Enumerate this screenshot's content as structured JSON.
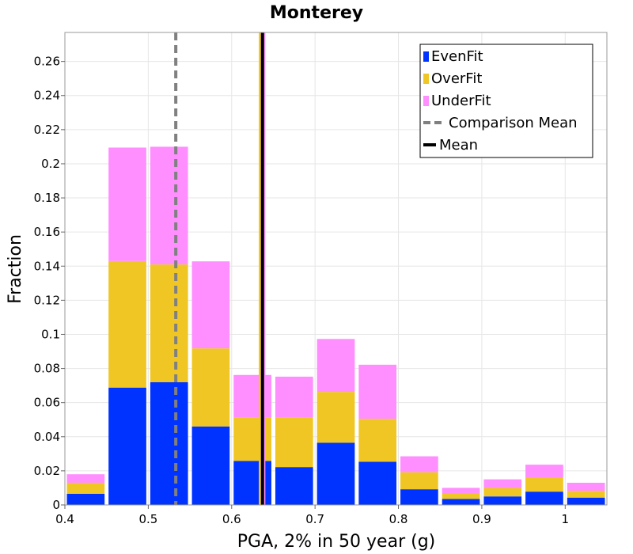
{
  "chart_data": {
    "type": "bar",
    "stacked": true,
    "title": "Monterey",
    "xlabel": "PGA, 2% in 50 year (g)",
    "ylabel": "Fraction",
    "xlim": [
      0.4,
      1.05
    ],
    "ylim": [
      0,
      0.277
    ],
    "xticks": [
      "0.4",
      "0.5",
      "0.6",
      "0.7",
      "0.8",
      "0.9",
      "1"
    ],
    "yticks": [
      "0",
      "0.02",
      "0.04",
      "0.06",
      "0.08",
      "0.1",
      "0.12",
      "0.14",
      "0.16",
      "0.18",
      "0.2",
      "0.22",
      "0.24",
      "0.26"
    ],
    "grid": true,
    "legend_position": "top-right",
    "bin_width": 0.05,
    "bin_starts": [
      0.4,
      0.45,
      0.5,
      0.55,
      0.6,
      0.65,
      0.7,
      0.75,
      0.8,
      0.85,
      0.9,
      0.95,
      1.0
    ],
    "series": [
      {
        "name": "EvenFit",
        "color": "#0033ff",
        "values": [
          0.0065,
          0.0688,
          0.072,
          0.046,
          0.0258,
          0.0222,
          0.0365,
          0.0253,
          0.0092,
          0.0035,
          0.005,
          0.0078,
          0.0043
        ]
      },
      {
        "name": "OverFit",
        "color": "#f0c624",
        "values": [
          0.0065,
          0.0742,
          0.069,
          0.0458,
          0.0254,
          0.029,
          0.0298,
          0.0252,
          0.01,
          0.003,
          0.005,
          0.008,
          0.004
        ]
      },
      {
        "name": "UnderFit",
        "color": "#ff8eff",
        "values": [
          0.005,
          0.0665,
          0.069,
          0.051,
          0.025,
          0.024,
          0.031,
          0.0317,
          0.0093,
          0.0035,
          0.005,
          0.0078,
          0.0047
        ]
      }
    ],
    "reference_lines": [
      {
        "name": "Comparison Mean",
        "x": 0.533,
        "color": "#808080",
        "style": "dashed"
      },
      {
        "name": "Mean",
        "x": 0.637,
        "color": "#000000",
        "style": "solid"
      }
    ],
    "extra_lines": [
      {
        "x": 0.634,
        "color": "#f0c624"
      },
      {
        "x": 0.639,
        "color": "#ff8eff"
      }
    ]
  }
}
